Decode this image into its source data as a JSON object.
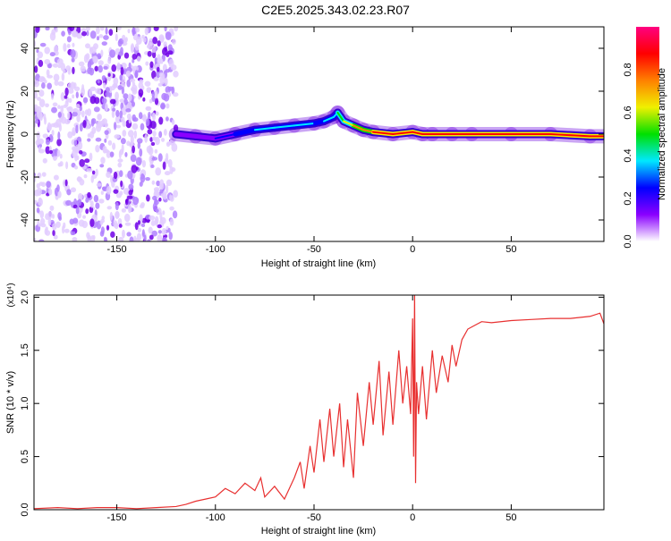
{
  "title": "C2E5.2025.343.02.23.R07",
  "chart_data": [
    {
      "type": "heatmap",
      "name": "spectrogram",
      "xlabel": "Height of straight line (km)",
      "ylabel": "Frequency (Hz)",
      "xlim": [
        -192,
        97
      ],
      "ylim": [
        -50,
        50
      ],
      "xticks": [
        -150,
        -100,
        -50,
        0,
        50
      ],
      "yticks": [
        -40,
        -20,
        0,
        20,
        40
      ],
      "colorbar": {
        "label": "Normalized spectral amplitude",
        "range": [
          0,
          1
        ],
        "ticks": [
          "0.0",
          "0.2",
          "0.4",
          "0.6",
          "0.8"
        ],
        "colors": [
          "#ffffff",
          "#8a00ff",
          "#0000ff",
          "#00e8ff",
          "#00e000",
          "#f0f000",
          "#ff8000",
          "#ff0000",
          "#ff0080"
        ]
      },
      "noise_region_x": [
        -192,
        -120
      ],
      "ridge": {
        "x": [
          -120,
          -110,
          -100,
          -90,
          -80,
          -70,
          -60,
          -50,
          -45,
          -40,
          -38,
          -35,
          -30,
          -25,
          -20,
          -10,
          0,
          5,
          10,
          20,
          30,
          50,
          70,
          90,
          97
        ],
        "freq": [
          0,
          -1,
          -2,
          0,
          2,
          3,
          4,
          5,
          6,
          8,
          10,
          6,
          4,
          2,
          1,
          0,
          1,
          0,
          0,
          0,
          0,
          0,
          0,
          -1,
          -1
        ],
        "amplitude": [
          0.1,
          0.15,
          0.2,
          0.3,
          0.35,
          0.35,
          0.35,
          0.3,
          0.35,
          0.4,
          0.5,
          0.6,
          0.7,
          0.8,
          0.85,
          0.9,
          0.9,
          0.9,
          0.85,
          0.85,
          0.85,
          0.85,
          0.85,
          0.85,
          0.85
        ]
      }
    },
    {
      "type": "line",
      "name": "snr",
      "xlabel": "Height of straight line (km)",
      "ylabel": "SNR (10 * v/v)",
      "yscale_label": "(x10⁴)",
      "xlim": [
        -192,
        97
      ],
      "ylim": [
        0,
        2.02
      ],
      "xticks": [
        -150,
        -100,
        -50,
        0,
        50
      ],
      "yticks": [
        "0.0",
        "0.5",
        "1.0",
        "1.5",
        "2.0"
      ],
      "ytick_values": [
        0,
        0.5,
        1.0,
        1.5,
        2.0
      ],
      "color": "#e83030",
      "x": [
        -192,
        -180,
        -170,
        -160,
        -150,
        -140,
        -130,
        -120,
        -115,
        -110,
        -105,
        -100,
        -95,
        -90,
        -85,
        -80,
        -77,
        -75,
        -70,
        -65,
        -60,
        -57,
        -55,
        -52,
        -50,
        -47,
        -45,
        -42,
        -40,
        -37,
        -35,
        -33,
        -30,
        -28,
        -25,
        -22,
        -20,
        -17,
        -15,
        -12,
        -10,
        -7,
        -5,
        -3,
        -1,
        0,
        0.5,
        1,
        1.5,
        2,
        3,
        5,
        7,
        10,
        12,
        15,
        18,
        20,
        22,
        25,
        28,
        30,
        35,
        40,
        50,
        60,
        70,
        80,
        90,
        95,
        97
      ],
      "y": [
        0.01,
        0.02,
        0.01,
        0.02,
        0.02,
        0.01,
        0.02,
        0.03,
        0.05,
        0.08,
        0.1,
        0.12,
        0.2,
        0.15,
        0.25,
        0.18,
        0.3,
        0.12,
        0.22,
        0.1,
        0.3,
        0.45,
        0.2,
        0.6,
        0.35,
        0.85,
        0.45,
        0.95,
        0.5,
        1.0,
        0.4,
        0.85,
        0.3,
        1.1,
        0.6,
        1.2,
        0.8,
        1.4,
        0.7,
        1.3,
        0.8,
        1.5,
        1.0,
        1.35,
        0.9,
        1.8,
        0.5,
        2.05,
        0.25,
        1.2,
        0.9,
        1.35,
        0.85,
        1.5,
        1.1,
        1.45,
        1.2,
        1.55,
        1.35,
        1.6,
        1.7,
        1.72,
        1.77,
        1.76,
        1.78,
        1.79,
        1.8,
        1.8,
        1.82,
        1.85,
        1.75
      ]
    }
  ]
}
